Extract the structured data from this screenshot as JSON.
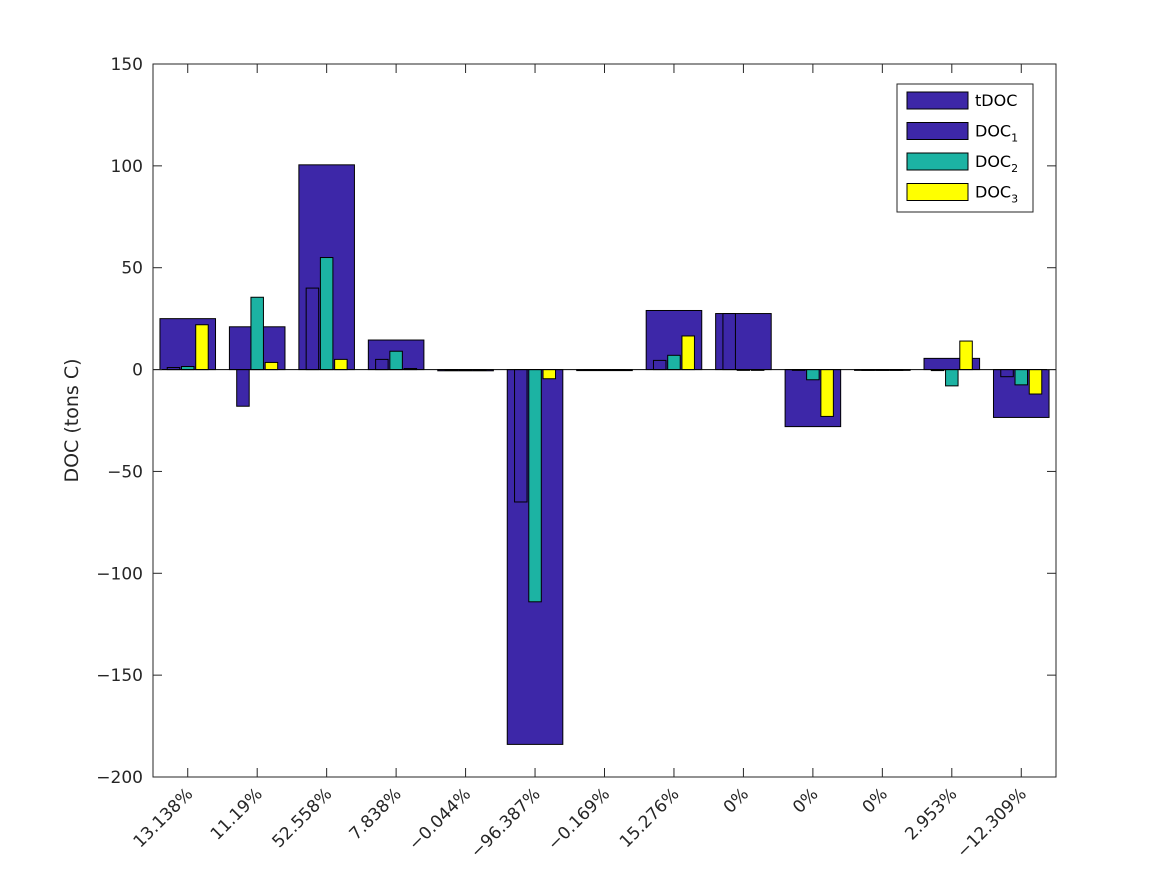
{
  "chart_data": {
    "type": "bar",
    "xlabel": "",
    "ylabel": "DOC (tons C)",
    "ylim": [
      -200,
      150
    ],
    "yticks": [
      -200,
      -150,
      -100,
      -50,
      0,
      50,
      100,
      150
    ],
    "ytick_labels": [
      "−200",
      "−150",
      "−100",
      "−50",
      "0",
      "50",
      "100",
      "150"
    ],
    "categories": [
      "13.138%",
      "11.19%",
      "52.558%",
      "7.838%",
      "−0.044%",
      "−96.387%",
      "−0.169%",
      "15.276%",
      "0%",
      "0%",
      "0%",
      "2.953%",
      "−12.309%"
    ],
    "x_tick_rotation_deg": 45,
    "grid": false,
    "box": true,
    "legend_position": "top-right",
    "series": [
      {
        "name": "tDOC",
        "legend_base": "tDOC",
        "legend_sub": "",
        "color": "#3d27a8",
        "values": [
          25,
          21,
          100.5,
          14.5,
          -0.6,
          -184,
          -0.5,
          29,
          27.5,
          -28,
          0,
          5.5,
          -23.5
        ]
      },
      {
        "name": "DOC1",
        "legend_base": "DOC",
        "legend_sub": "1",
        "color": "#3d27a8",
        "values": [
          1,
          -18,
          40,
          5,
          0,
          -65,
          0,
          4.5,
          27.5,
          0,
          0,
          -0.5,
          -3.5
        ]
      },
      {
        "name": "DOC2",
        "legend_base": "DOC",
        "legend_sub": "2",
        "color": "#1cb3a3",
        "values": [
          1.5,
          35.5,
          55,
          9,
          0,
          -114,
          0,
          7,
          0,
          -5,
          0,
          -8,
          -7.5
        ]
      },
      {
        "name": "DOC3",
        "legend_base": "DOC",
        "legend_sub": "3",
        "color": "#ffff00",
        "values": [
          22,
          3.5,
          5,
          0.5,
          0,
          -4.5,
          0,
          16.5,
          0,
          -23,
          0,
          14,
          -12
        ]
      }
    ]
  }
}
